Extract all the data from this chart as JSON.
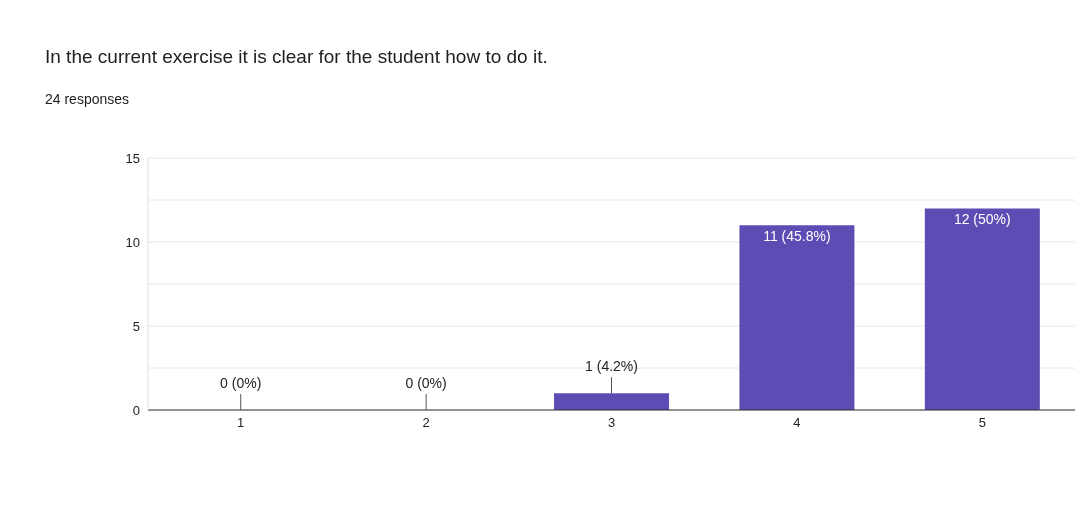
{
  "chart_data": {
    "type": "bar",
    "title": "In the current exercise it is clear for the student how to do it.",
    "subtitle": "24 responses",
    "categories": [
      "1",
      "2",
      "3",
      "4",
      "5"
    ],
    "values": [
      0,
      0,
      1,
      11,
      12
    ],
    "value_labels": [
      "0 (0%)",
      "0 (0%)",
      "1 (4.2%)",
      "11 (45.8%)",
      "12 (50%)"
    ],
    "color": "#5b4db3",
    "ylim": [
      0,
      15
    ],
    "yticks": [
      0,
      {
        "value": 2.5,
        "label": null
      },
      5,
      {
        "value": 7.5,
        "label": null
      },
      10,
      {
        "value": 12.5,
        "label": null
      },
      15
    ],
    "grid": "y"
  }
}
